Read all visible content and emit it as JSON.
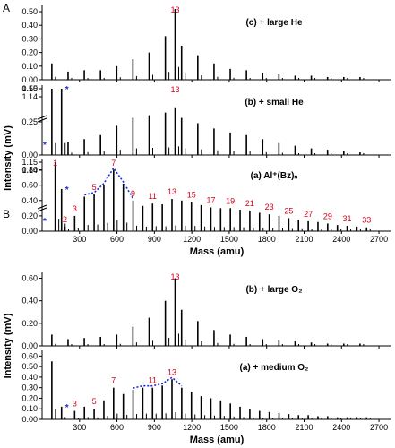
{
  "figure": {
    "panels": [
      "A",
      "B"
    ],
    "colors": {
      "ink": "#000000",
      "label": "#d0021b",
      "marker": "#1b2fd6"
    }
  },
  "chart_data": [
    {
      "id": "A-c",
      "type": "bar",
      "panel": "A",
      "label": "(c)  + large He",
      "ylabel": "Intensity (mV)",
      "xlim": [
        0,
        2800
      ],
      "ylim": [
        0,
        0.52
      ],
      "yticks": [
        "0.00",
        "0.10",
        "0.20",
        "0.30",
        "0.40",
        "0.50"
      ],
      "peak_label": {
        "text": "13",
        "x": 1066
      },
      "series": [
        {
          "x": [
            78,
            208,
            338,
            468,
            598,
            728,
            858,
            988,
            1066,
            1118,
            1248,
            1378,
            1508,
            1638,
            1768,
            1898,
            2028,
            2158,
            2288,
            2418,
            2548
          ],
          "values": [
            0.12,
            0.06,
            0.07,
            0.07,
            0.1,
            0.15,
            0.2,
            0.32,
            0.53,
            0.25,
            0.18,
            0.12,
            0.08,
            0.07,
            0.05,
            0.04,
            0.03,
            0.03,
            0.02,
            0.02,
            0.02
          ]
        }
      ]
    },
    {
      "id": "A-b",
      "type": "bar",
      "panel": "A",
      "label": "(b)  + small He",
      "ylabel": "Intensity (mV)",
      "xlim": [
        0,
        2800
      ],
      "ylim": [
        0,
        0.5
      ],
      "axis_break": true,
      "yticks": [
        "0.00",
        "0.25",
        "0.50",
        "1.14",
        "1.15"
      ],
      "peak_label": {
        "text": "13",
        "x": 1066
      },
      "series": [
        {
          "x": [
            78,
            156,
            208,
            338,
            468,
            598,
            728,
            858,
            988,
            1066,
            1118,
            1248,
            1378,
            1508,
            1638,
            1768,
            1898,
            2028,
            2158,
            2288,
            2418,
            2548
          ],
          "values": [
            1.15,
            0.55,
            0.1,
            0.12,
            0.15,
            0.22,
            0.28,
            0.3,
            0.32,
            0.36,
            0.28,
            0.24,
            0.2,
            0.17,
            0.15,
            0.12,
            0.09,
            0.07,
            0.05,
            0.04,
            0.03,
            0.02
          ]
        }
      ]
    },
    {
      "id": "A-a",
      "type": "bar",
      "panel": "A",
      "label": "(a)  Al⁺(Bz)ₙ",
      "ylabel": "Intensity (mV)",
      "xlabel": "Mass (amu)",
      "xlim": [
        0,
        2800
      ],
      "ylim": [
        0,
        0.9
      ],
      "axis_break": true,
      "yticks": [
        "0.00",
        "0.20",
        "0.40",
        "0.60",
        "0.80",
        "1.14",
        "1.15"
      ],
      "xticks": [
        "300",
        "600",
        "900",
        "1200",
        "1500",
        "1800",
        "2100",
        "2400",
        "2700"
      ],
      "cluster_labels": [
        "1",
        "2",
        "3",
        "5",
        "7",
        "9",
        "11",
        "13",
        "15",
        "17",
        "19",
        "21",
        "23",
        "25",
        "27",
        "29",
        "31",
        "33"
      ],
      "cluster_x": [
        105,
        183,
        261,
        417,
        573,
        729,
        885,
        1041,
        1197,
        1353,
        1509,
        1665,
        1821,
        1977,
        2133,
        2289,
        2445,
        2601
      ],
      "series": [
        {
          "x": [
            105,
            156,
            183,
            261,
            339,
            417,
            495,
            573,
            651,
            729,
            807,
            885,
            963,
            1041,
            1119,
            1197,
            1275,
            1353,
            1431,
            1509,
            1587,
            1665,
            1743,
            1821,
            1899,
            1977,
            2055,
            2133,
            2211,
            2289,
            2367,
            2445,
            2523,
            2601
          ],
          "values": [
            1.15,
            0.55,
            0.06,
            0.2,
            0.45,
            0.48,
            0.6,
            0.8,
            0.62,
            0.4,
            0.33,
            0.36,
            0.35,
            0.42,
            0.4,
            0.38,
            0.34,
            0.31,
            0.3,
            0.3,
            0.28,
            0.27,
            0.24,
            0.22,
            0.2,
            0.17,
            0.15,
            0.13,
            0.12,
            0.1,
            0.08,
            0.07,
            0.06,
            0.05
          ]
        }
      ]
    },
    {
      "id": "B-b",
      "type": "bar",
      "panel": "B",
      "label": "(b)  + large O₂",
      "ylabel": "Intensity (mV)",
      "xlim": [
        0,
        2800
      ],
      "ylim": [
        0,
        0.62
      ],
      "yticks": [
        "0.00",
        "0.20",
        "0.40",
        "0.60"
      ],
      "peak_label": {
        "text": "13",
        "x": 1066
      },
      "series": [
        {
          "x": [
            78,
            208,
            338,
            468,
            598,
            728,
            858,
            988,
            1066,
            1118,
            1248,
            1378,
            1508,
            1638,
            1768,
            1898,
            2028,
            2158,
            2288,
            2418,
            2548
          ],
          "values": [
            0.1,
            0.06,
            0.07,
            0.08,
            0.1,
            0.17,
            0.25,
            0.4,
            0.6,
            0.32,
            0.22,
            0.14,
            0.1,
            0.08,
            0.06,
            0.05,
            0.04,
            0.03,
            0.02,
            0.02,
            0.02
          ]
        }
      ]
    },
    {
      "id": "B-a",
      "type": "bar",
      "panel": "B",
      "label": "(a)  + medium O₂",
      "ylabel": "Intensity (mV)",
      "xlabel": "Mass (amu)",
      "xlim": [
        0,
        2800
      ],
      "ylim": [
        0,
        0.62
      ],
      "yticks": [
        "0.00",
        "0.10",
        "0.20",
        "0.30",
        "0.40",
        "0.50",
        "0.60"
      ],
      "xticks": [
        "300",
        "600",
        "900",
        "1200",
        "1500",
        "1800",
        "2100",
        "2400",
        "2700"
      ],
      "cluster_labels": [
        "3",
        "5",
        "7",
        "11",
        "13"
      ],
      "cluster_x": [
        261,
        417,
        573,
        885,
        1041
      ],
      "series": [
        {
          "x": [
            78,
            156,
            261,
            339,
            417,
            495,
            573,
            651,
            729,
            807,
            885,
            963,
            1041,
            1119,
            1197,
            1275,
            1353,
            1431,
            1509,
            1587,
            1665,
            1743,
            1821,
            1899,
            1977,
            2055,
            2133,
            2211,
            2289,
            2367,
            2445,
            2523,
            2601
          ],
          "values": [
            0.55,
            0.12,
            0.08,
            0.12,
            0.1,
            0.18,
            0.3,
            0.24,
            0.28,
            0.3,
            0.3,
            0.32,
            0.38,
            0.3,
            0.26,
            0.22,
            0.2,
            0.18,
            0.15,
            0.12,
            0.1,
            0.08,
            0.07,
            0.06,
            0.05,
            0.04,
            0.04,
            0.03,
            0.03,
            0.02,
            0.02,
            0.02,
            0.02
          ]
        }
      ]
    }
  ]
}
